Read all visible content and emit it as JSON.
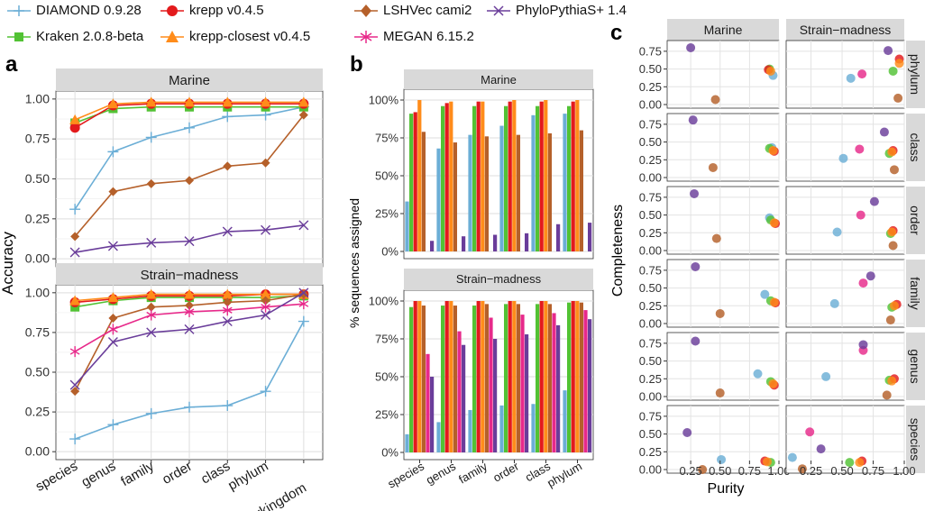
{
  "legend": [
    {
      "name": "DIAMOND 0.9.28",
      "color": "#6baed6",
      "marker": "plus"
    },
    {
      "name": "Kraken 2.0.8-beta",
      "color": "#52c234",
      "marker": "square"
    },
    {
      "name": "krepp v0.4.5",
      "color": "#e31a1c",
      "marker": "circle"
    },
    {
      "name": "krepp-closest v0.4.5",
      "color": "#ff8c1a",
      "marker": "triangle"
    },
    {
      "name": "LSHVec cami2",
      "color": "#b5602a",
      "marker": "diamond"
    },
    {
      "name": "MEGAN 6.15.2",
      "color": "#e7298a",
      "marker": "asterisk"
    },
    {
      "name": "PhyloPythiaS+ 1.4",
      "color": "#6a3d9a",
      "marker": "cross"
    }
  ],
  "panel_labels": {
    "a": "a",
    "b": "b",
    "c": "c"
  },
  "chart_data": [
    {
      "id": "a",
      "type": "line",
      "ylabel": "Accuracy",
      "ylim": [
        0,
        1
      ],
      "yticks": [
        "0.00",
        "0.25",
        "0.50",
        "0.75",
        "1.00"
      ],
      "categories": [
        "species",
        "genus",
        "family",
        "order",
        "class",
        "phylum",
        "superkingdom"
      ],
      "facets": [
        {
          "title": "Marine",
          "series": [
            {
              "name": "DIAMOND 0.9.28",
              "values": [
                0.31,
                0.67,
                0.76,
                0.82,
                0.89,
                0.9,
                0.95
              ]
            },
            {
              "name": "Kraken 2.0.8-beta",
              "values": [
                0.85,
                0.94,
                0.95,
                0.95,
                0.95,
                0.95,
                0.95
              ]
            },
            {
              "name": "krepp v0.4.5",
              "values": [
                0.82,
                0.96,
                0.97,
                0.97,
                0.97,
                0.97,
                0.97
              ]
            },
            {
              "name": "krepp-closest v0.4.5",
              "values": [
                0.87,
                0.97,
                0.98,
                0.98,
                0.98,
                0.98,
                0.98
              ]
            },
            {
              "name": "LSHVec cami2",
              "values": [
                0.14,
                0.42,
                0.47,
                0.49,
                0.58,
                0.6,
                0.9
              ]
            },
            {
              "name": "PhyloPythiaS+ 1.4",
              "values": [
                0.04,
                0.08,
                0.1,
                0.11,
                0.17,
                0.18,
                0.21
              ]
            }
          ]
        },
        {
          "title": "Strain−madness",
          "series": [
            {
              "name": "DIAMOND 0.9.28",
              "values": [
                0.08,
                0.17,
                0.24,
                0.28,
                0.29,
                0.38,
                0.82
              ]
            },
            {
              "name": "Kraken 2.0.8-beta",
              "values": [
                0.91,
                0.95,
                0.97,
                0.97,
                0.97,
                0.97,
                0.98
              ]
            },
            {
              "name": "krepp v0.4.5",
              "values": [
                0.94,
                0.96,
                0.98,
                0.98,
                0.98,
                0.99,
                0.99
              ]
            },
            {
              "name": "krepp-closest v0.4.5",
              "values": [
                0.95,
                0.97,
                0.99,
                0.99,
                0.99,
                0.99,
                0.99
              ]
            },
            {
              "name": "LSHVec cami2",
              "values": [
                0.38,
                0.84,
                0.91,
                0.92,
                0.94,
                0.95,
                0.99
              ]
            },
            {
              "name": "MEGAN 6.15.2",
              "values": [
                0.63,
                0.77,
                0.86,
                0.88,
                0.89,
                0.91,
                0.93
              ]
            },
            {
              "name": "PhyloPythiaS+ 1.4",
              "values": [
                0.42,
                0.69,
                0.75,
                0.77,
                0.82,
                0.86,
                1.0
              ]
            }
          ]
        }
      ]
    },
    {
      "id": "b",
      "type": "bar",
      "ylabel": "% sequences assigned",
      "ylim": [
        0,
        100
      ],
      "yticks": [
        "0%",
        "25%",
        "50%",
        "75%",
        "100%"
      ],
      "categories": [
        "species",
        "genus",
        "family",
        "order",
        "class",
        "phylum"
      ],
      "facets": [
        {
          "title": "Marine",
          "series": [
            {
              "name": "DIAMOND 0.9.28",
              "values": [
                33,
                68,
                77,
                83,
                90,
                91
              ]
            },
            {
              "name": "Kraken 2.0.8-beta",
              "values": [
                91,
                96,
                96,
                96,
                96,
                96
              ]
            },
            {
              "name": "krepp v0.4.5",
              "values": [
                92,
                98,
                99,
                99,
                99,
                99
              ]
            },
            {
              "name": "krepp-closest v0.4.5",
              "values": [
                100,
                99,
                99,
                100,
                100,
                100
              ]
            },
            {
              "name": "LSHVec cami2",
              "values": [
                79,
                72,
                76,
                77,
                78,
                80
              ]
            },
            {
              "name": "MEGAN 6.15.2",
              "values": [
                null,
                null,
                null,
                null,
                null,
                null
              ]
            },
            {
              "name": "PhyloPythiaS+ 1.4",
              "values": [
                7,
                10,
                11,
                12,
                18,
                19
              ]
            }
          ]
        },
        {
          "title": "Strain−madness",
          "series": [
            {
              "name": "DIAMOND 0.9.28",
              "values": [
                12,
                20,
                28,
                31,
                32,
                41
              ]
            },
            {
              "name": "Kraken 2.0.8-beta",
              "values": [
                96,
                97,
                97,
                98,
                98,
                99
              ]
            },
            {
              "name": "krepp v0.4.5",
              "values": [
                100,
                100,
                100,
                100,
                100,
                100
              ]
            },
            {
              "name": "krepp-closest v0.4.5",
              "values": [
                100,
                100,
                100,
                100,
                100,
                100
              ]
            },
            {
              "name": "LSHVec cami2",
              "values": [
                97,
                97,
                98,
                98,
                98,
                99
              ]
            },
            {
              "name": "MEGAN 6.15.2",
              "values": [
                65,
                80,
                89,
                91,
                92,
                94
              ]
            },
            {
              "name": "PhyloPythiaS+ 1.4",
              "values": [
                50,
                71,
                75,
                78,
                84,
                88
              ]
            }
          ]
        }
      ]
    },
    {
      "id": "c",
      "type": "scatter",
      "xlabel": "Purity",
      "ylabel": "Completeness",
      "xlim": [
        0.05,
        1.0
      ],
      "ylim": [
        0,
        0.85
      ],
      "xticks": [
        0.25,
        0.5,
        0.75,
        1.0
      ],
      "xtick_labels": [
        "0.25",
        "0.50",
        "0.75",
        "1.00"
      ],
      "yticks": [
        0,
        0.25,
        0.5,
        0.75
      ],
      "ytick_labels": [
        "0.00",
        "0.25",
        "0.50",
        "0.75"
      ],
      "columns": [
        "Marine",
        "Strain−madness"
      ],
      "rows": [
        "phylum",
        "class",
        "order",
        "family",
        "genus",
        "species"
      ],
      "points": {
        "Marine": {
          "phylum": [
            {
              "s": "DIAMOND 0.9.28",
              "x": 0.95,
              "y": 0.41
            },
            {
              "s": "Kraken 2.0.8-beta",
              "x": 0.92,
              "y": 0.5
            },
            {
              "s": "krepp v0.4.5",
              "x": 0.91,
              "y": 0.49
            },
            {
              "s": "krepp-closest v0.4.5",
              "x": 0.93,
              "y": 0.47
            },
            {
              "s": "LSHVec cami2",
              "x": 0.46,
              "y": 0.07
            },
            {
              "s": "PhyloPythiaS+ 1.4",
              "x": 0.25,
              "y": 0.8
            }
          ],
          "class": [
            {
              "s": "DIAMOND 0.9.28",
              "x": 0.94,
              "y": 0.42
            },
            {
              "s": "Kraken 2.0.8-beta",
              "x": 0.92,
              "y": 0.41
            },
            {
              "s": "krepp v0.4.5",
              "x": 0.96,
              "y": 0.37
            },
            {
              "s": "krepp-closest v0.4.5",
              "x": 0.95,
              "y": 0.38
            },
            {
              "s": "LSHVec cami2",
              "x": 0.44,
              "y": 0.14
            },
            {
              "s": "PhyloPythiaS+ 1.4",
              "x": 0.27,
              "y": 0.81
            }
          ],
          "order": [
            {
              "s": "DIAMOND 0.9.28",
              "x": 0.92,
              "y": 0.46
            },
            {
              "s": "Kraken 2.0.8-beta",
              "x": 0.93,
              "y": 0.43
            },
            {
              "s": "krepp v0.4.5",
              "x": 0.97,
              "y": 0.38
            },
            {
              "s": "krepp-closest v0.4.5",
              "x": 0.96,
              "y": 0.39
            },
            {
              "s": "LSHVec cami2",
              "x": 0.47,
              "y": 0.17
            },
            {
              "s": "PhyloPythiaS+ 1.4",
              "x": 0.28,
              "y": 0.8
            }
          ],
          "family": [
            {
              "s": "DIAMOND 0.9.28",
              "x": 0.88,
              "y": 0.41
            },
            {
              "s": "Kraken 2.0.8-beta",
              "x": 0.93,
              "y": 0.32
            },
            {
              "s": "krepp v0.4.5",
              "x": 0.97,
              "y": 0.29
            },
            {
              "s": "krepp-closest v0.4.5",
              "x": 0.96,
              "y": 0.3
            },
            {
              "s": "LSHVec cami2",
              "x": 0.5,
              "y": 0.14
            },
            {
              "s": "PhyloPythiaS+ 1.4",
              "x": 0.29,
              "y": 0.8
            }
          ],
          "genus": [
            {
              "s": "DIAMOND 0.9.28",
              "x": 0.82,
              "y": 0.32
            },
            {
              "s": "Kraken 2.0.8-beta",
              "x": 0.93,
              "y": 0.21
            },
            {
              "s": "krepp v0.4.5",
              "x": 0.96,
              "y": 0.16
            },
            {
              "s": "krepp-closest v0.4.5",
              "x": 0.95,
              "y": 0.18
            },
            {
              "s": "LSHVec cami2",
              "x": 0.5,
              "y": 0.05
            },
            {
              "s": "PhyloPythiaS+ 1.4",
              "x": 0.29,
              "y": 0.78
            }
          ],
          "species": [
            {
              "s": "DIAMOND 0.9.28",
              "x": 0.51,
              "y": 0.14
            },
            {
              "s": "Kraken 2.0.8-beta",
              "x": 0.93,
              "y": 0.1
            },
            {
              "s": "krepp v0.4.5",
              "x": 0.88,
              "y": 0.12
            },
            {
              "s": "krepp-closest v0.4.5",
              "x": 0.9,
              "y": 0.11
            },
            {
              "s": "LSHVec cami2",
              "x": 0.35,
              "y": 0.0
            },
            {
              "s": "PhyloPythiaS+ 1.4",
              "x": 0.22,
              "y": 0.52
            }
          ]
        },
        "Strain−madness": {
          "phylum": [
            {
              "s": "DIAMOND 0.9.28",
              "x": 0.57,
              "y": 0.37
            },
            {
              "s": "Kraken 2.0.8-beta",
              "x": 0.91,
              "y": 0.47
            },
            {
              "s": "krepp v0.4.5",
              "x": 0.96,
              "y": 0.64
            },
            {
              "s": "krepp-closest v0.4.5",
              "x": 0.96,
              "y": 0.58
            },
            {
              "s": "LSHVec cami2",
              "x": 0.95,
              "y": 0.09
            },
            {
              "s": "MEGAN 6.15.2",
              "x": 0.66,
              "y": 0.43
            },
            {
              "s": "PhyloPythiaS+ 1.4",
              "x": 0.87,
              "y": 0.76
            }
          ],
          "class": [
            {
              "s": "DIAMOND 0.9.28",
              "x": 0.51,
              "y": 0.27
            },
            {
              "s": "Kraken 2.0.8-beta",
              "x": 0.88,
              "y": 0.34
            },
            {
              "s": "krepp v0.4.5",
              "x": 0.91,
              "y": 0.38
            },
            {
              "s": "krepp-closest v0.4.5",
              "x": 0.9,
              "y": 0.36
            },
            {
              "s": "LSHVec cami2",
              "x": 0.92,
              "y": 0.11
            },
            {
              "s": "MEGAN 6.15.2",
              "x": 0.64,
              "y": 0.4
            },
            {
              "s": "PhyloPythiaS+ 1.4",
              "x": 0.84,
              "y": 0.64
            }
          ],
          "order": [
            {
              "s": "DIAMOND 0.9.28",
              "x": 0.46,
              "y": 0.26
            },
            {
              "s": "Kraken 2.0.8-beta",
              "x": 0.89,
              "y": 0.24
            },
            {
              "s": "krepp v0.4.5",
              "x": 0.91,
              "y": 0.28
            },
            {
              "s": "krepp-closest v0.4.5",
              "x": 0.9,
              "y": 0.26
            },
            {
              "s": "LSHVec cami2",
              "x": 0.91,
              "y": 0.07
            },
            {
              "s": "MEGAN 6.15.2",
              "x": 0.65,
              "y": 0.5
            },
            {
              "s": "PhyloPythiaS+ 1.4",
              "x": 0.76,
              "y": 0.69
            }
          ],
          "family": [
            {
              "s": "DIAMOND 0.9.28",
              "x": 0.44,
              "y": 0.28
            },
            {
              "s": "Kraken 2.0.8-beta",
              "x": 0.9,
              "y": 0.23
            },
            {
              "s": "krepp v0.4.5",
              "x": 0.94,
              "y": 0.27
            },
            {
              "s": "krepp-closest v0.4.5",
              "x": 0.92,
              "y": 0.25
            },
            {
              "s": "LSHVec cami2",
              "x": 0.89,
              "y": 0.05
            },
            {
              "s": "MEGAN 6.15.2",
              "x": 0.67,
              "y": 0.57
            },
            {
              "s": "PhyloPythiaS+ 1.4",
              "x": 0.73,
              "y": 0.67
            }
          ],
          "genus": [
            {
              "s": "DIAMOND 0.9.28",
              "x": 0.37,
              "y": 0.28
            },
            {
              "s": "Kraken 2.0.8-beta",
              "x": 0.88,
              "y": 0.23
            },
            {
              "s": "krepp v0.4.5",
              "x": 0.92,
              "y": 0.25
            },
            {
              "s": "krepp-closest v0.4.5",
              "x": 0.9,
              "y": 0.22
            },
            {
              "s": "LSHVec cami2",
              "x": 0.86,
              "y": 0.02
            },
            {
              "s": "MEGAN 6.15.2",
              "x": 0.67,
              "y": 0.65
            },
            {
              "s": "PhyloPythiaS+ 1.4",
              "x": 0.67,
              "y": 0.73
            }
          ],
          "species": [
            {
              "s": "DIAMOND 0.9.28",
              "x": 0.1,
              "y": 0.17
            },
            {
              "s": "Kraken 2.0.8-beta",
              "x": 0.56,
              "y": 0.1
            },
            {
              "s": "krepp v0.4.5",
              "x": 0.66,
              "y": 0.12
            },
            {
              "s": "krepp-closest v0.4.5",
              "x": 0.64,
              "y": 0.1
            },
            {
              "s": "LSHVec cami2",
              "x": 0.18,
              "y": 0.01
            },
            {
              "s": "MEGAN 6.15.2",
              "x": 0.24,
              "y": 0.53
            },
            {
              "s": "PhyloPythiaS+ 1.4",
              "x": 0.33,
              "y": 0.29
            }
          ]
        }
      }
    }
  ]
}
